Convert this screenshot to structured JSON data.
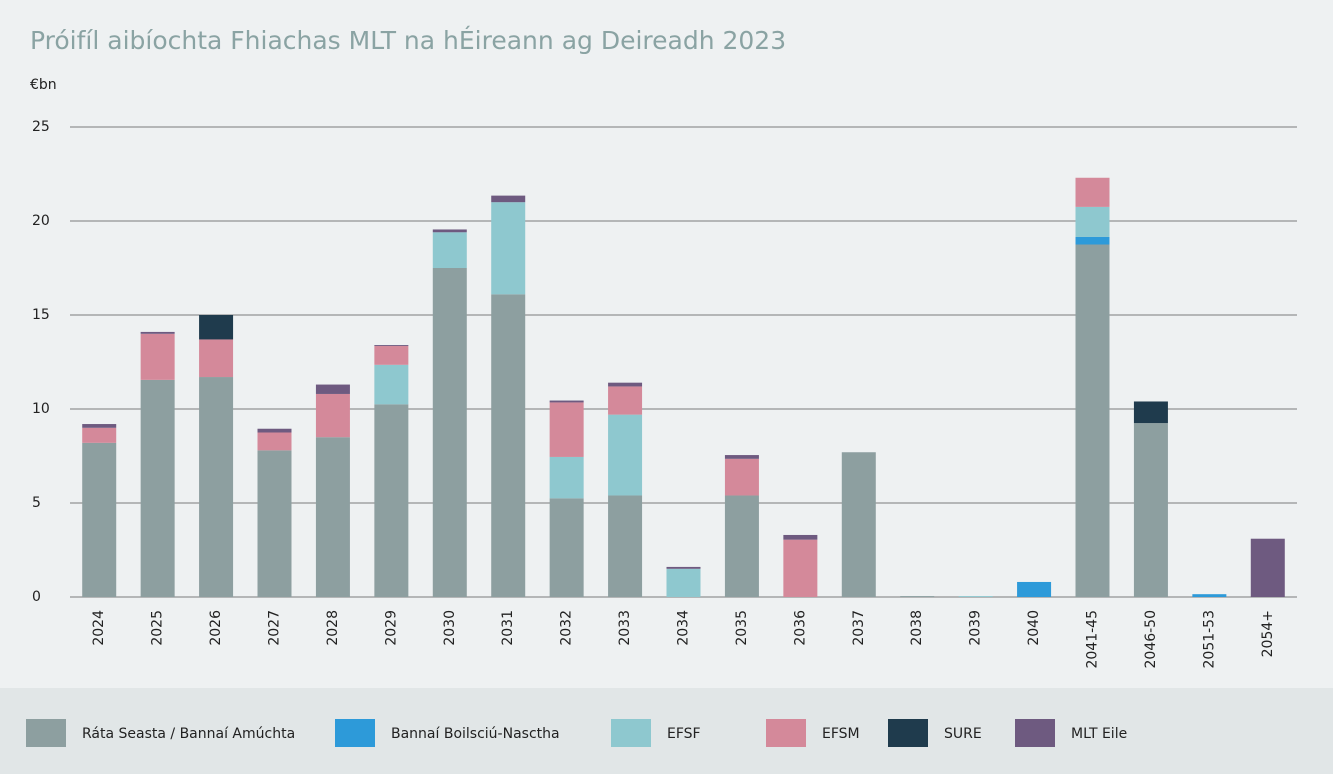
{
  "chart_data": {
    "type": "stacked_bar",
    "title": "Próifíl aibíochta Fhiachas MLT na hÉireann ag Deireadh 2023",
    "y_label": "€bn",
    "categories": [
      "2024",
      "2025",
      "2026",
      "2027",
      "2028",
      "2029",
      "2030",
      "2031",
      "2032",
      "2033",
      "2034",
      "2035",
      "2036",
      "2037",
      "2038",
      "2039",
      "2040",
      "2041-45",
      "2046-50",
      "2051-53",
      "2054+"
    ],
    "series": [
      {
        "name": "Ráta Seasta / Bannaí Amúchta",
        "color": "#8d9fa0",
        "values": [
          8.2,
          11.55,
          11.7,
          7.8,
          8.5,
          10.25,
          17.5,
          16.1,
          5.25,
          5.4,
          0,
          5.4,
          0,
          7.7,
          0.05,
          0,
          0,
          18.75,
          9.25,
          0,
          0
        ]
      },
      {
        "name": "Bannaí Boilsciú-Nasctha",
        "color": "#2d9ad9",
        "values": [
          0,
          0,
          0,
          0,
          0,
          0,
          0,
          0,
          0,
          0,
          0,
          0,
          0,
          0,
          0,
          0,
          0.8,
          0.4,
          0,
          0.15,
          0
        ]
      },
      {
        "name": "EFSF",
        "color": "#8ec8cf",
        "values": [
          0,
          0,
          0,
          0,
          0,
          2.1,
          1.9,
          4.9,
          2.2,
          4.3,
          1.5,
          0,
          0,
          0,
          0,
          0.05,
          0,
          1.6,
          0,
          0,
          0
        ]
      },
      {
        "name": "EFSM",
        "color": "#d4899a",
        "values": [
          0.8,
          2.45,
          2.0,
          0.95,
          2.3,
          1.0,
          0,
          0,
          2.9,
          1.5,
          0,
          1.95,
          3.05,
          0,
          0,
          0,
          0,
          1.55,
          0,
          0,
          0
        ]
      },
      {
        "name": "SURE",
        "color": "#1f3b4d",
        "values": [
          0,
          0,
          1.3,
          0,
          0,
          0,
          0,
          0,
          0,
          0,
          0,
          0,
          0,
          0,
          0,
          0,
          0,
          0,
          1.15,
          0,
          0
        ]
      },
      {
        "name": "MLT Eile",
        "color": "#6e5a80",
        "values": [
          0.2,
          0.1,
          0,
          0.2,
          0.5,
          0.05,
          0.15,
          0.35,
          0.1,
          0.2,
          0.1,
          0.2,
          0.25,
          0,
          0,
          0,
          0,
          0,
          0,
          0,
          3.1
        ]
      }
    ],
    "ylim": [
      0,
      25
    ],
    "yticks": [
      0,
      5,
      10,
      15,
      20,
      25
    ],
    "grid": true
  }
}
